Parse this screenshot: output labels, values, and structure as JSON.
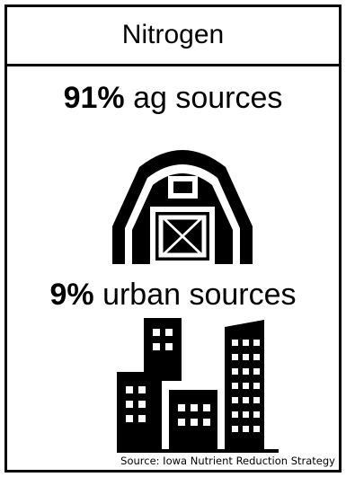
{
  "title": "Nitrogen",
  "ag": {
    "percent": "91%",
    "label": "ag sources",
    "icon": "barn-icon"
  },
  "urban": {
    "percent": "9%",
    "label": "urban sources",
    "icon": "city-buildings-icon"
  },
  "source": "Source: Iowa Nutrient Reduction Strategy",
  "colors": {
    "background": "#ffffff",
    "foreground": "#000000"
  }
}
